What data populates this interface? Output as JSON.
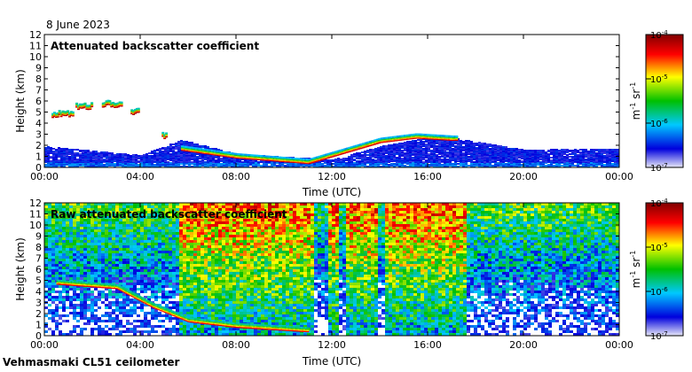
{
  "date_label": "8 June 2023",
  "footer": "Vehmasmaki CL51 ceilometer",
  "chart_data": [
    {
      "type": "heatmap",
      "title": "Attenuated backscatter coefficient",
      "xlabel": "Time (UTC)",
      "ylabel": "Height (km)",
      "x_ticks": [
        "00:00",
        "04:00",
        "08:00",
        "12:00",
        "16:00",
        "20:00",
        "00:00"
      ],
      "xlim_hours": [
        0,
        24
      ],
      "ylim_km": [
        0,
        12
      ],
      "y_ticks": [
        0,
        1,
        2,
        3,
        4,
        5,
        6,
        7,
        8,
        9,
        10,
        11,
        12
      ],
      "colorbar": {
        "scale": "log",
        "range": [
          1e-07,
          0.0001
        ],
        "tick_exponents": [
          "-7",
          "-6",
          "-5",
          "-4"
        ],
        "unit_base": [
          "m",
          "sr"
        ],
        "unit_exp": [
          "-1",
          "-1"
        ],
        "colormap": [
          "#e8e8f8",
          "#0000dd",
          "#00c8ff",
          "#00c000",
          "#ffff00",
          "#ff0000",
          "#800000"
        ]
      },
      "features": {
        "boundary_layer": [
          {
            "t": 0,
            "top": 1.8
          },
          {
            "t": 2,
            "top": 1.4
          },
          {
            "t": 4,
            "top": 1.0
          },
          {
            "t": 5.7,
            "top": 2.4
          },
          {
            "t": 8,
            "top": 1.1
          },
          {
            "t": 12,
            "top": 0.6
          },
          {
            "t": 14,
            "top": 1.8
          },
          {
            "t": 16,
            "top": 2.6
          },
          {
            "t": 17.2,
            "top": 2.5
          },
          {
            "t": 20,
            "top": 1.5
          },
          {
            "t": 24,
            "top": 1.6
          }
        ],
        "mid_cloud_events": [
          {
            "t0": 0.3,
            "t1": 1.2,
            "h": 4.6
          },
          {
            "t0": 1.3,
            "t1": 2.0,
            "h": 5.3
          },
          {
            "t0": 2.4,
            "t1": 3.2,
            "h": 5.5
          },
          {
            "t0": 3.6,
            "t1": 3.9,
            "h": 4.8
          },
          {
            "t0": 4.9,
            "t1": 5.1,
            "h": 2.6
          }
        ],
        "low_cloud_base": [
          {
            "t": 5.7,
            "h": 1.5
          },
          {
            "t": 8.0,
            "h": 0.8
          },
          {
            "t": 11.0,
            "h": 0.3
          },
          {
            "t": 14.0,
            "h": 2.2
          },
          {
            "t": 15.5,
            "h": 2.6
          },
          {
            "t": 17.0,
            "h": 2.4
          }
        ]
      }
    },
    {
      "type": "heatmap",
      "title": "Raw attenuated backscatter coefficient",
      "xlabel": "Time (UTC)",
      "ylabel": "Height (km)",
      "x_ticks": [
        "00:00",
        "04:00",
        "08:00",
        "12:00",
        "16:00",
        "20:00",
        "00:00"
      ],
      "xlim_hours": [
        0,
        24
      ],
      "ylim_km": [
        0,
        12
      ],
      "y_ticks": [
        0,
        1,
        2,
        3,
        4,
        5,
        6,
        7,
        8,
        9,
        10,
        11,
        12
      ],
      "colorbar": {
        "scale": "log",
        "range": [
          1e-07,
          0.0001
        ],
        "tick_exponents": [
          "-7",
          "-6",
          "-5",
          "-4"
        ],
        "unit_base": [
          "m",
          "sr"
        ],
        "unit_exp": [
          "-1",
          "-1"
        ],
        "colormap": [
          "#e8e8f8",
          "#0000dd",
          "#00c8ff",
          "#00c000",
          "#ffff00",
          "#ff0000",
          "#800000"
        ]
      },
      "features": {
        "noise_background": "high, increasing with height and during daytime (06:00-17:00)",
        "descending_layer": [
          {
            "t": 0.5,
            "h": 4.6
          },
          {
            "t": 3.0,
            "h": 4.2
          },
          {
            "t": 4.5,
            "h": 2.5
          },
          {
            "t": 6.0,
            "h": 1.2
          },
          {
            "t": 8.0,
            "h": 0.7
          },
          {
            "t": 11.0,
            "h": 0.3
          }
        ],
        "clear_columns_hours": [
          11.3,
          11.6,
          12.3,
          14.0
        ]
      }
    }
  ]
}
